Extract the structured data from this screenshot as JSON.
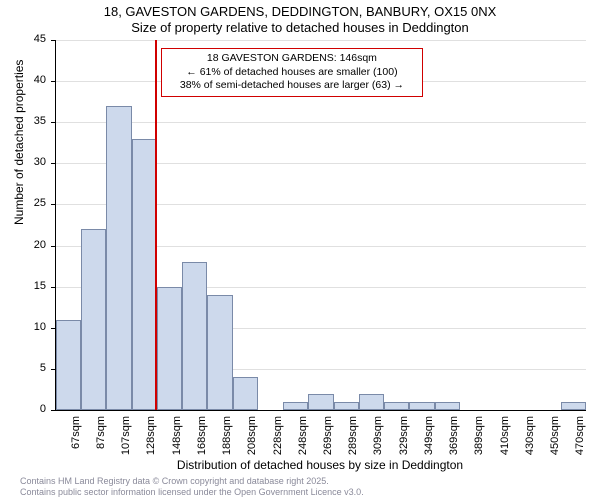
{
  "title_line1": "18, GAVESTON GARDENS, DEDDINGTON, BANBURY, OX15 0NX",
  "title_line2": "Size of property relative to detached houses in Deddington",
  "x_axis_title": "Distribution of detached houses by size in Deddington",
  "y_axis_title": "Number of detached properties",
  "footer_line1": "Contains HM Land Registry data © Crown copyright and database right 2025.",
  "footer_line2": "Contains public sector information licensed under the Open Government Licence v3.0.",
  "histogram": {
    "type": "histogram",
    "background_color": "#ffffff",
    "grid_color": "#e0e0e0",
    "bar_fill": "#cdd9ec",
    "bar_border": "#7a8aa8",
    "axis_color": "#000000",
    "ylim": [
      0,
      45
    ],
    "ytick_step": 5,
    "yticks": [
      0,
      5,
      10,
      15,
      20,
      25,
      30,
      35,
      40,
      45
    ],
    "x_categories": [
      "67sqm",
      "87sqm",
      "107sqm",
      "128sqm",
      "148sqm",
      "168sqm",
      "188sqm",
      "208sqm",
      "228sqm",
      "248sqm",
      "269sqm",
      "289sqm",
      "309sqm",
      "329sqm",
      "349sqm",
      "369sqm",
      "389sqm",
      "410sqm",
      "430sqm",
      "450sqm",
      "470sqm"
    ],
    "values": [
      11,
      22,
      37,
      33,
      15,
      18,
      14,
      4,
      0,
      1,
      2,
      1,
      2,
      1,
      1,
      1,
      0,
      0,
      0,
      0,
      1
    ],
    "label_fontsize": 11,
    "title_fontsize": 13
  },
  "marker": {
    "color": "#d00000",
    "position_category_index": 4,
    "annotation_line1": "18 GAVESTON GARDENS: 146sqm",
    "annotation_line2": "← 61% of detached houses are smaller (100)",
    "annotation_line3": "38% of semi-detached houses are larger (63) →"
  }
}
